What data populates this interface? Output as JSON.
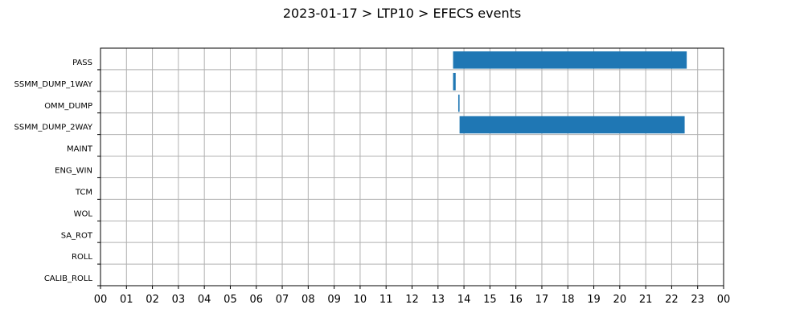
{
  "chart_data": {
    "type": "bar",
    "orientation": "horizontal-timeline",
    "title": "2023-01-17 > LTP10 > EFECS events",
    "xlabel": "",
    "ylabel": "",
    "xlim": [
      0,
      24
    ],
    "x_tick_labels": [
      "00",
      "01",
      "02",
      "03",
      "04",
      "05",
      "06",
      "07",
      "08",
      "09",
      "10",
      "11",
      "12",
      "13",
      "14",
      "15",
      "16",
      "17",
      "18",
      "19",
      "20",
      "21",
      "22",
      "23",
      "00"
    ],
    "categories": [
      "PASS",
      "SSMM_DUMP_1WAY",
      "OMM_DUMP",
      "SSMM_DUMP_2WAY",
      "MAINT",
      "ENG_WIN",
      "TCM",
      "WOL",
      "SA_ROT",
      "ROLL",
      "CALIB_ROLL"
    ],
    "grid": true,
    "bar_color": "#1f77b4",
    "events": [
      {
        "category": "PASS",
        "start": 13.58,
        "end": 22.58
      },
      {
        "category": "SSMM_DUMP_1WAY",
        "start": 13.58,
        "end": 13.68
      },
      {
        "category": "OMM_DUMP",
        "start": 13.78,
        "end": 13.83
      },
      {
        "category": "SSMM_DUMP_2WAY",
        "start": 13.83,
        "end": 22.5
      }
    ]
  }
}
